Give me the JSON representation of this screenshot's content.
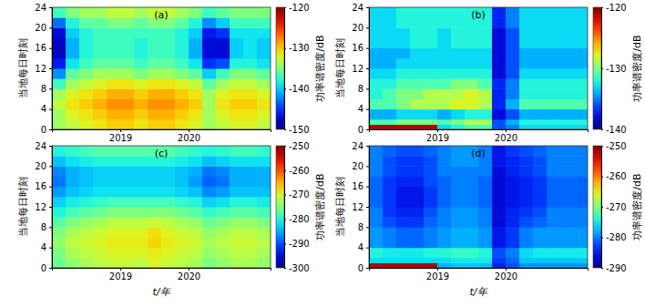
{
  "chart_data": [
    {
      "type": "heatmap",
      "title": "(a)",
      "ylabel": "当地每日时刻",
      "x": [
        2018,
        2018.2,
        2018.4,
        2018.6,
        2018.8,
        2019,
        2019.2,
        2019.4,
        2019.6,
        2019.8,
        2020,
        2020.2,
        2020.4,
        2020.6,
        2020.8,
        2021,
        2021.2
      ],
      "y": [
        0,
        1,
        2,
        4,
        6,
        8,
        10,
        12,
        14,
        16,
        18,
        20,
        22,
        24
      ],
      "xlim": [
        2018,
        2021.2
      ],
      "xticks": [
        2019,
        2020
      ],
      "ylim": [
        0,
        24
      ],
      "yticks": [
        0,
        4,
        8,
        12,
        16,
        20,
        24
      ],
      "values": [
        [
          -134,
          -133,
          -132,
          -131,
          -130,
          -130,
          -131,
          -130,
          -130,
          -131,
          -132,
          -134,
          -133,
          -132,
          -132,
          -133
        ],
        [
          -134,
          -133,
          -132,
          -131,
          -130,
          -130,
          -131,
          -130,
          -130,
          -131,
          -132,
          -134,
          -133,
          -132,
          -132,
          -133
        ],
        [
          -134,
          -132,
          -131,
          -130,
          -129,
          -129,
          -130,
          -129,
          -129,
          -130,
          -131,
          -134,
          -132,
          -131,
          -131,
          -132
        ],
        [
          -133,
          -131,
          -130,
          -129,
          -128,
          -128,
          -129,
          -128,
          -128,
          -129,
          -130,
          -134,
          -131,
          -130,
          -130,
          -131
        ],
        [
          -134,
          -132,
          -131,
          -130,
          -129,
          -129,
          -130,
          -129,
          -129,
          -130,
          -131,
          -134,
          -132,
          -131,
          -131,
          -132
        ],
        [
          -137,
          -134,
          -133,
          -132,
          -131,
          -131,
          -132,
          -131,
          -131,
          -132,
          -133,
          -136,
          -134,
          -133,
          -133,
          -134
        ],
        [
          -142,
          -136,
          -135,
          -134,
          -134,
          -134,
          -135,
          -134,
          -134,
          -135,
          -136,
          -140,
          -137,
          -135,
          -135,
          -136
        ],
        [
          -146,
          -139,
          -137,
          -136,
          -136,
          -136,
          -137,
          -136,
          -136,
          -137,
          -139,
          -145,
          -144,
          -138,
          -138,
          -139
        ],
        [
          -148,
          -141,
          -138,
          -137,
          -137,
          -137,
          -138,
          -137,
          -137,
          -138,
          -141,
          -147,
          -147,
          -140,
          -139,
          -140
        ],
        [
          -148,
          -141,
          -138,
          -137,
          -137,
          -137,
          -138,
          -137,
          -137,
          -138,
          -141,
          -147,
          -147,
          -140,
          -139,
          -140
        ],
        [
          -147,
          -140,
          -138,
          -137,
          -137,
          -137,
          -137,
          -137,
          -137,
          -138,
          -140,
          -146,
          -145,
          -139,
          -139,
          -139
        ],
        [
          -143,
          -138,
          -136,
          -136,
          -135,
          -135,
          -136,
          -135,
          -135,
          -136,
          -138,
          -142,
          -140,
          -137,
          -137,
          -137
        ],
        [
          -137,
          -135,
          -134,
          -134,
          -133,
          -133,
          -134,
          -133,
          -133,
          -134,
          -135,
          -137,
          -136,
          -135,
          -135,
          -135
        ]
      ],
      "colorbar_label": "功率谱密度/dB",
      "colorbar_lim": [
        -150,
        -120
      ],
      "colorbar_ticks": [
        -150,
        -140,
        -130,
        -120
      ]
    },
    {
      "type": "heatmap",
      "title": "(b)",
      "ylabel": "当地每日时刻",
      "x": [
        2018,
        2018.2,
        2018.4,
        2018.6,
        2018.8,
        2019,
        2019.2,
        2019.4,
        2019.6,
        2019.8,
        2020,
        2020.2,
        2020.4,
        2020.6,
        2020.8,
        2021,
        2021.2
      ],
      "y": [
        0,
        1,
        2,
        4,
        6,
        8,
        10,
        12,
        14,
        16,
        18,
        20,
        22,
        24
      ],
      "xlim": [
        2018,
        2021.2
      ],
      "xticks": [
        2019,
        2020
      ],
      "ylim": [
        0,
        24
      ],
      "yticks": [
        0,
        4,
        8,
        12,
        16,
        20,
        24
      ],
      "values": [
        [
          -121,
          -121,
          -121,
          -121,
          -121,
          -133,
          -132,
          -131,
          -131,
          -136,
          -135,
          -133,
          -133,
          -133,
          -133,
          -133
        ],
        [
          -131,
          -131,
          -130,
          -130,
          -130,
          -131,
          -130,
          -129,
          -129,
          -136,
          -134,
          -132,
          -132,
          -132,
          -132,
          -132
        ],
        [
          -134,
          -134,
          -133,
          -133,
          -133,
          -134,
          -133,
          -132,
          -132,
          -138,
          -136,
          -134,
          -134,
          -134,
          -134,
          -134
        ],
        [
          -131,
          -131,
          -130,
          -129,
          -129,
          -129,
          -128,
          -128,
          -129,
          -137,
          -134,
          -131,
          -131,
          -131,
          -131,
          -131
        ],
        [
          -132,
          -131,
          -130,
          -130,
          -129,
          -129,
          -129,
          -128,
          -129,
          -137,
          -135,
          -132,
          -132,
          -132,
          -132,
          -132
        ],
        [
          -132,
          -132,
          -131,
          -131,
          -131,
          -131,
          -130,
          -130,
          -131,
          -137,
          -135,
          -132,
          -132,
          -132,
          -132,
          -132
        ],
        [
          -133,
          -133,
          -132,
          -132,
          -132,
          -132,
          -132,
          -132,
          -132,
          -138,
          -136,
          -133,
          -133,
          -133,
          -133,
          -133
        ],
        [
          -134,
          -134,
          -133,
          -133,
          -133,
          -133,
          -133,
          -133,
          -133,
          -138,
          -136,
          -134,
          -134,
          -134,
          -134,
          -134
        ],
        [
          -134,
          -134,
          -134,
          -133,
          -133,
          -133,
          -133,
          -133,
          -133,
          -138,
          -136,
          -134,
          -134,
          -134,
          -134,
          -134
        ],
        [
          -133,
          -133,
          -133,
          -132,
          -132,
          -133,
          -132,
          -132,
          -132,
          -138,
          -136,
          -133,
          -133,
          -133,
          -133,
          -133
        ],
        [
          -133,
          -133,
          -133,
          -132,
          -132,
          -133,
          -132,
          -132,
          -132,
          -138,
          -136,
          -133,
          -133,
          -133,
          -133,
          -133
        ],
        [
          -133,
          -133,
          -132,
          -132,
          -132,
          -132,
          -132,
          -132,
          -132,
          -137,
          -135,
          -133,
          -133,
          -133,
          -133,
          -133
        ],
        [
          -133,
          -133,
          -132,
          -132,
          -132,
          -132,
          -132,
          -132,
          -132,
          -137,
          -135,
          -133,
          -133,
          -133,
          -133,
          -133
        ]
      ],
      "colorbar_label": "功率谱密度/dB",
      "colorbar_lim": [
        -140,
        -120
      ],
      "colorbar_ticks": [
        -140,
        -130,
        -120
      ]
    },
    {
      "type": "heatmap",
      "title": "(c)",
      "xlabel": "t/年",
      "ylabel": "当地每日时刻",
      "x": [
        2018,
        2018.2,
        2018.4,
        2018.6,
        2018.8,
        2019,
        2019.2,
        2019.4,
        2019.6,
        2019.8,
        2020,
        2020.2,
        2020.4,
        2020.6,
        2020.8,
        2021,
        2021.2
      ],
      "y": [
        0,
        1,
        2,
        4,
        6,
        8,
        10,
        12,
        14,
        16,
        18,
        20,
        22,
        24
      ],
      "xlim": [
        2018,
        2021.2
      ],
      "xticks": [
        2019,
        2020
      ],
      "ylim": [
        0,
        24
      ],
      "yticks": [
        0,
        4,
        8,
        12,
        16,
        20,
        24
      ],
      "values": [
        [
          -276,
          -274,
          -273,
          -272,
          -271,
          -271,
          -272,
          -270,
          -271,
          -272,
          -273,
          -275,
          -274,
          -273,
          -273,
          -274
        ],
        [
          -276,
          -274,
          -273,
          -272,
          -271,
          -271,
          -272,
          -270,
          -271,
          -272,
          -273,
          -275,
          -274,
          -273,
          -273,
          -274
        ],
        [
          -275,
          -273,
          -272,
          -271,
          -270,
          -270,
          -270,
          -269,
          -270,
          -271,
          -272,
          -274,
          -273,
          -272,
          -272,
          -273
        ],
        [
          -274,
          -272,
          -271,
          -270,
          -269,
          -269,
          -269,
          -267,
          -269,
          -270,
          -271,
          -273,
          -272,
          -271,
          -271,
          -272
        ],
        [
          -275,
          -273,
          -272,
          -271,
          -270,
          -270,
          -270,
          -268,
          -270,
          -271,
          -272,
          -274,
          -273,
          -272,
          -272,
          -273
        ],
        [
          -277,
          -275,
          -274,
          -273,
          -272,
          -272,
          -272,
          -271,
          -272,
          -273,
          -274,
          -276,
          -275,
          -274,
          -274,
          -275
        ],
        [
          -280,
          -278,
          -277,
          -276,
          -275,
          -275,
          -275,
          -275,
          -275,
          -276,
          -277,
          -279,
          -278,
          -277,
          -277,
          -278
        ],
        [
          -283,
          -281,
          -280,
          -279,
          -278,
          -278,
          -278,
          -278,
          -278,
          -279,
          -280,
          -283,
          -282,
          -280,
          -280,
          -281
        ],
        [
          -286,
          -284,
          -283,
          -282,
          -282,
          -282,
          -282,
          -282,
          -282,
          -283,
          -284,
          -287,
          -286,
          -284,
          -284,
          -284
        ],
        [
          -288,
          -285,
          -284,
          -283,
          -283,
          -283,
          -283,
          -283,
          -283,
          -284,
          -286,
          -289,
          -288,
          -285,
          -285,
          -285
        ],
        [
          -287,
          -285,
          -284,
          -283,
          -283,
          -283,
          -283,
          -283,
          -283,
          -284,
          -285,
          -288,
          -287,
          -285,
          -285,
          -285
        ],
        [
          -284,
          -282,
          -281,
          -280,
          -280,
          -280,
          -280,
          -280,
          -280,
          -281,
          -282,
          -284,
          -283,
          -282,
          -282,
          -282
        ],
        [
          -280,
          -279,
          -278,
          -277,
          -277,
          -277,
          -277,
          -277,
          -277,
          -278,
          -279,
          -280,
          -279,
          -278,
          -278,
          -279
        ]
      ],
      "colorbar_label": "功率谱密度/dB",
      "colorbar_lim": [
        -300,
        -250
      ],
      "colorbar_ticks": [
        -300,
        -290,
        -280,
        -270,
        -260,
        -250
      ]
    },
    {
      "type": "heatmap",
      "title": "(d)",
      "xlabel": "t/年",
      "ylabel": "当地每日时刻",
      "x": [
        2018,
        2018.2,
        2018.4,
        2018.6,
        2018.8,
        2019,
        2019.2,
        2019.4,
        2019.6,
        2019.8,
        2020,
        2020.2,
        2020.4,
        2020.6,
        2020.8,
        2021,
        2021.2
      ],
      "y": [
        0,
        1,
        2,
        4,
        6,
        8,
        10,
        12,
        14,
        16,
        18,
        20,
        22,
        24
      ],
      "xlim": [
        2018,
        2021.2
      ],
      "xticks": [
        2019,
        2020
      ],
      "ylim": [
        0,
        24
      ],
      "yticks": [
        0,
        4,
        8,
        12,
        16,
        20,
        24
      ],
      "values": [
        [
          -252,
          -252,
          -252,
          -252,
          -252,
          -278,
          -277,
          -277,
          -277,
          -284,
          -282,
          -279,
          -279,
          -279,
          -279,
          -279
        ],
        [
          -276,
          -276,
          -276,
          -276,
          -276,
          -276,
          -275,
          -275,
          -275,
          -283,
          -281,
          -277,
          -277,
          -277,
          -277,
          -277
        ],
        [
          -274,
          -275,
          -275,
          -275,
          -274,
          -274,
          -273,
          -273,
          -274,
          -282,
          -280,
          -276,
          -275,
          -275,
          -275,
          -275
        ],
        [
          -279,
          -280,
          -281,
          -281,
          -280,
          -279,
          -278,
          -278,
          -279,
          -285,
          -283,
          -280,
          -279,
          -279,
          -279,
          -279
        ],
        [
          -279,
          -280,
          -281,
          -281,
          -280,
          -279,
          -278,
          -278,
          -279,
          -285,
          -283,
          -280,
          -279,
          -279,
          -279,
          -279
        ],
        [
          -280,
          -282,
          -283,
          -283,
          -281,
          -280,
          -279,
          -279,
          -280,
          -286,
          -284,
          -282,
          -281,
          -280,
          -280,
          -280
        ],
        [
          -280,
          -283,
          -284,
          -284,
          -282,
          -280,
          -279,
          -279,
          -280,
          -286,
          -284,
          -283,
          -282,
          -280,
          -280,
          -280
        ],
        [
          -281,
          -283,
          -285,
          -285,
          -283,
          -281,
          -280,
          -280,
          -281,
          -286,
          -285,
          -284,
          -283,
          -281,
          -281,
          -281
        ],
        [
          -281,
          -283,
          -285,
          -285,
          -283,
          -281,
          -280,
          -280,
          -281,
          -286,
          -285,
          -284,
          -283,
          -281,
          -281,
          -281
        ],
        [
          -281,
          -283,
          -284,
          -284,
          -282,
          -281,
          -280,
          -280,
          -281,
          -286,
          -285,
          -284,
          -283,
          -281,
          -281,
          -281
        ],
        [
          -280,
          -282,
          -283,
          -283,
          -282,
          -280,
          -280,
          -280,
          -280,
          -286,
          -284,
          -283,
          -282,
          -280,
          -280,
          -280
        ],
        [
          -280,
          -282,
          -283,
          -283,
          -282,
          -280,
          -279,
          -279,
          -280,
          -285,
          -284,
          -283,
          -282,
          -280,
          -280,
          -280
        ],
        [
          -280,
          -281,
          -282,
          -282,
          -281,
          -280,
          -279,
          -279,
          -280,
          -285,
          -283,
          -282,
          -281,
          -280,
          -280,
          -280
        ]
      ],
      "colorbar_label": "功率谱密度/dB",
      "colorbar_lim": [
        -290,
        -250
      ],
      "colorbar_ticks": [
        -290,
        -280,
        -270,
        -260,
        -250
      ]
    }
  ]
}
